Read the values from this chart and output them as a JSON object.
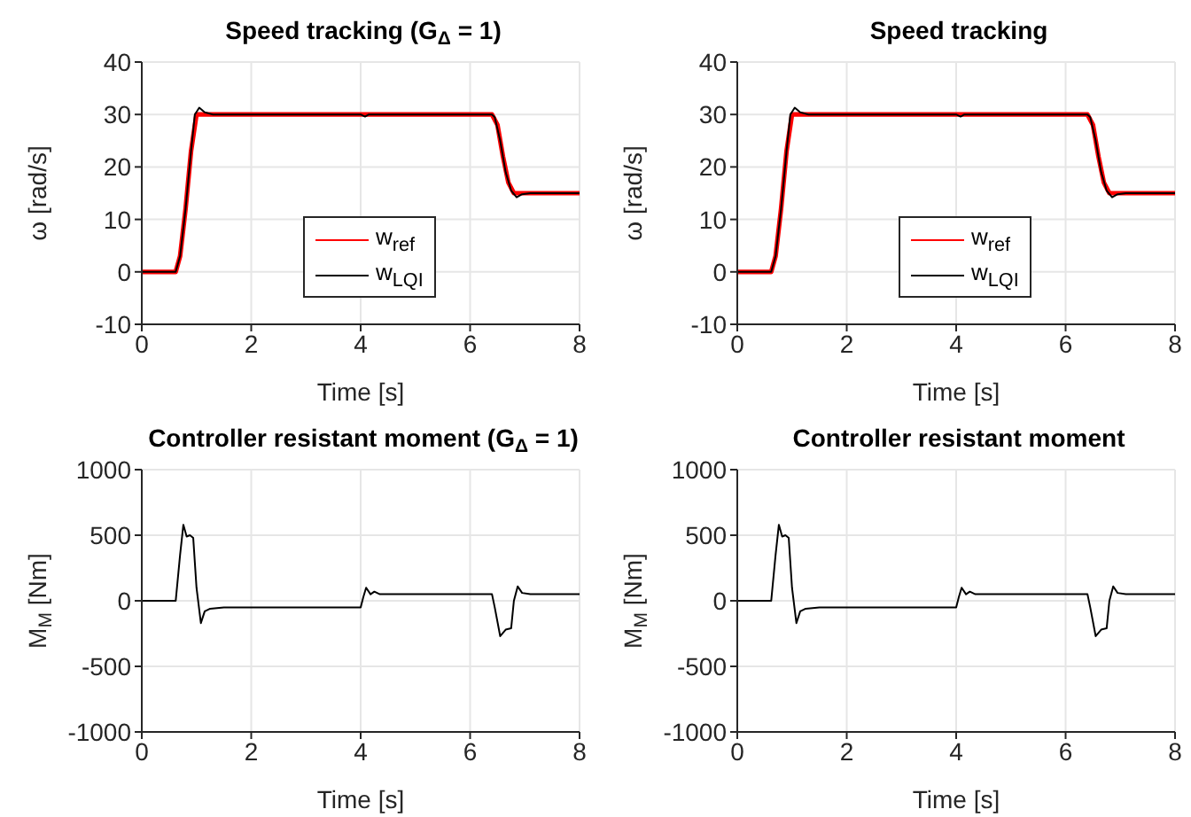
{
  "chart_data": [
    {
      "type": "line",
      "title": "Speed tracking (G$_{Δ}$ = 1)",
      "xlabel": "Time [s]",
      "ylabel": "ω [rad/s]",
      "xlim": [
        0,
        8
      ],
      "xticks": [
        0,
        2,
        4,
        6,
        8
      ],
      "ylim": [
        -10,
        40
      ],
      "yticks": [
        -10,
        0,
        10,
        20,
        30,
        40
      ],
      "grid": true,
      "legend": "bottom",
      "series": [
        {
          "name": "w$_{ref}$",
          "color": "#ff0000",
          "x": [
            0,
            0.62,
            0.7,
            0.8,
            0.9,
            1.0,
            6.4,
            6.5,
            6.6,
            6.7,
            6.8,
            8
          ],
          "values": [
            0,
            0,
            3,
            12,
            23,
            30,
            30,
            28,
            22,
            17,
            15,
            15
          ]
        },
        {
          "name": "w$_{LQI}$",
          "color": "#000000",
          "x": [
            0,
            0.62,
            0.7,
            0.8,
            0.9,
            0.97,
            1.05,
            1.15,
            1.3,
            4.0,
            4.08,
            4.15,
            6.4,
            6.45,
            6.55,
            6.65,
            6.75,
            6.85,
            6.95,
            7.1,
            8
          ],
          "values": [
            0,
            0,
            3,
            12,
            23,
            30,
            31.3,
            30.4,
            30,
            30,
            29.6,
            30,
            30,
            29.5,
            25,
            19,
            15.5,
            14.2,
            14.8,
            15,
            15
          ]
        }
      ]
    },
    {
      "type": "line",
      "title": "Speed tracking",
      "xlabel": "Time [s]",
      "ylabel": "ω [rad/s]",
      "xlim": [
        0,
        8
      ],
      "xticks": [
        0,
        2,
        4,
        6,
        8
      ],
      "ylim": [
        -10,
        40
      ],
      "yticks": [
        -10,
        0,
        10,
        20,
        30,
        40
      ],
      "grid": true,
      "legend": "bottom",
      "series": [
        {
          "name": "w$_{ref}$",
          "color": "#ff0000",
          "x": [
            0,
            0.62,
            0.7,
            0.8,
            0.9,
            1.0,
            6.4,
            6.5,
            6.6,
            6.7,
            6.8,
            8
          ],
          "values": [
            0,
            0,
            3,
            12,
            23,
            30,
            30,
            28,
            22,
            17,
            15,
            15
          ]
        },
        {
          "name": "w$_{LQI}$",
          "color": "#000000",
          "x": [
            0,
            0.62,
            0.7,
            0.8,
            0.9,
            0.97,
            1.05,
            1.15,
            1.3,
            4.0,
            4.08,
            4.15,
            6.4,
            6.45,
            6.55,
            6.65,
            6.75,
            6.85,
            6.95,
            7.1,
            8
          ],
          "values": [
            0,
            0,
            3,
            12,
            23,
            30,
            31.3,
            30.4,
            30,
            30,
            29.6,
            30,
            30,
            29.5,
            25,
            19,
            15.5,
            14.2,
            14.8,
            15,
            15
          ]
        }
      ]
    },
    {
      "type": "line",
      "title": "Controller resistant moment (G$_{Δ}$ = 1)",
      "xlabel": "Time [s]",
      "ylabel": "M$_{M}$ [Nm]",
      "xlim": [
        0,
        8
      ],
      "xticks": [
        0,
        2,
        4,
        6,
        8
      ],
      "ylim": [
        -1000,
        1000
      ],
      "yticks": [
        -1000,
        -500,
        0,
        500,
        1000
      ],
      "grid": true,
      "series": [
        {
          "color": "#000000",
          "x": [
            0,
            0.62,
            0.7,
            0.76,
            0.82,
            0.88,
            0.94,
            1.0,
            1.08,
            1.15,
            1.25,
            1.5,
            4.0,
            4.05,
            4.1,
            4.18,
            4.25,
            4.35,
            6.4,
            6.45,
            6.55,
            6.65,
            6.75,
            6.8,
            6.87,
            6.95,
            7.1,
            8
          ],
          "values": [
            0,
            0,
            350,
            580,
            490,
            500,
            480,
            100,
            -170,
            -80,
            -60,
            -50,
            -50,
            30,
            100,
            50,
            70,
            50,
            50,
            -50,
            -270,
            -220,
            -210,
            0,
            110,
            60,
            50,
            50
          ]
        }
      ]
    },
    {
      "type": "line",
      "title": "Controller resistant moment",
      "xlabel": "Time [s]",
      "ylabel": "M$_{M}$ [Nm]",
      "xlim": [
        0,
        8
      ],
      "xticks": [
        0,
        2,
        4,
        6,
        8
      ],
      "ylim": [
        -1000,
        1000
      ],
      "yticks": [
        -1000,
        -500,
        0,
        500,
        1000
      ],
      "grid": true,
      "series": [
        {
          "color": "#000000",
          "x": [
            0,
            0.62,
            0.7,
            0.76,
            0.82,
            0.88,
            0.94,
            1.0,
            1.08,
            1.15,
            1.25,
            1.5,
            4.0,
            4.05,
            4.1,
            4.18,
            4.25,
            4.35,
            6.4,
            6.45,
            6.55,
            6.65,
            6.75,
            6.8,
            6.87,
            6.95,
            7.1,
            8
          ],
          "values": [
            0,
            0,
            350,
            580,
            490,
            500,
            480,
            100,
            -170,
            -80,
            -60,
            -50,
            -50,
            30,
            100,
            50,
            70,
            50,
            50,
            -50,
            -270,
            -220,
            -210,
            0,
            110,
            60,
            50,
            50
          ]
        }
      ]
    }
  ]
}
